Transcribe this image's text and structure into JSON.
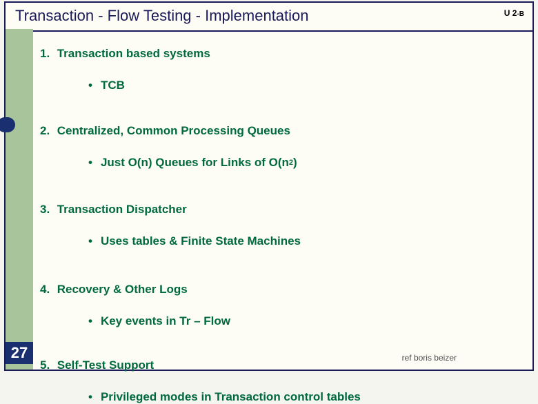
{
  "header": {
    "title": "Transaction - Flow Testing -  Implementation",
    "unit_main": "U 2",
    "unit_suffix": "-B"
  },
  "page_number": "27",
  "footer_ref": "ref boris beizer",
  "items": [
    {
      "num": "1.",
      "title": "Transaction based systems",
      "sub": "TCB"
    },
    {
      "num": "2.",
      "title": "Centralized, Common Processing Queues",
      "sub_prefix": "Just O(n) Queues for Links of O(n",
      "sub_sup": "2",
      "sub_suffix": ")"
    },
    {
      "num": "3.",
      "title": "Transaction Dispatcher",
      "sub": "Uses tables & Finite State Machines"
    },
    {
      "num": "4.",
      "title": "Recovery & Other Logs",
      "sub": "Key events in Tr – Flow"
    },
    {
      "num": "5.",
      "title": "Self-Test Support",
      "sub": "Privileged modes in Transaction control tables"
    }
  ],
  "styling": {
    "frame_border_color": "#1a1a5a",
    "background_color": "#fdfdf5",
    "stripe_color": "#a8c49a",
    "text_color": "#00693e",
    "title_color": "#1a1a5a",
    "page_box_bg": "#1a2f6f",
    "page_box_fg": "#ffffff",
    "title_fontsize": 22,
    "body_fontsize": 17,
    "ref_fontsize": 12,
    "slide_width": 780,
    "slide_height": 540
  }
}
